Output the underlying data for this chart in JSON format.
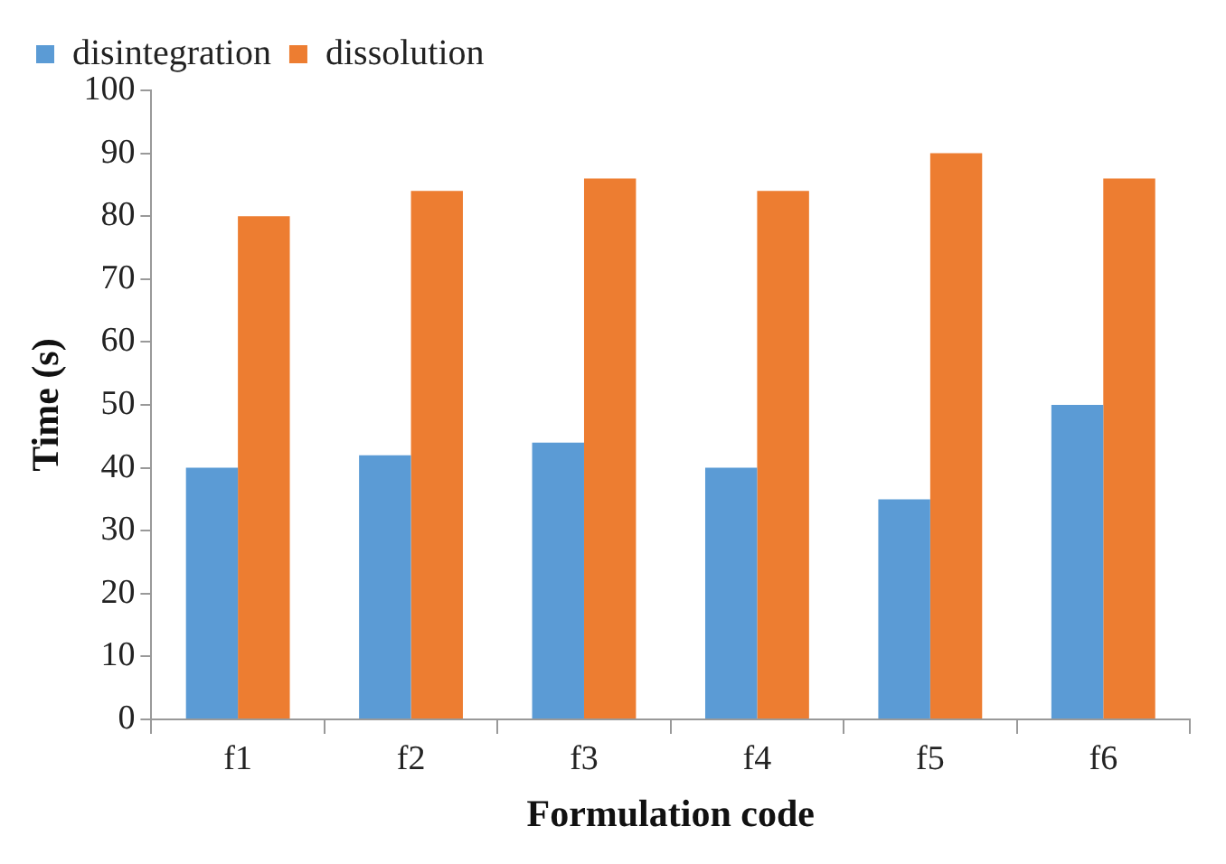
{
  "chart_data": {
    "type": "bar",
    "xlabel": "Formulation code",
    "ylabel": "Time (s)",
    "categories": [
      "f1",
      "f2",
      "f3",
      "f4",
      "f5",
      "f6"
    ],
    "series": [
      {
        "name": "disintegration",
        "color": "#5b9bd5",
        "values": [
          40,
          42,
          44,
          40,
          35,
          50
        ]
      },
      {
        "name": "dissolution",
        "color": "#ed7d31",
        "values": [
          80,
          84,
          86,
          84,
          90,
          86
        ]
      }
    ],
    "ylim": [
      0,
      100
    ],
    "yticks": [
      0,
      10,
      20,
      30,
      40,
      50,
      60,
      70,
      80,
      90,
      100
    ],
    "grid": false,
    "legend": "top left"
  }
}
